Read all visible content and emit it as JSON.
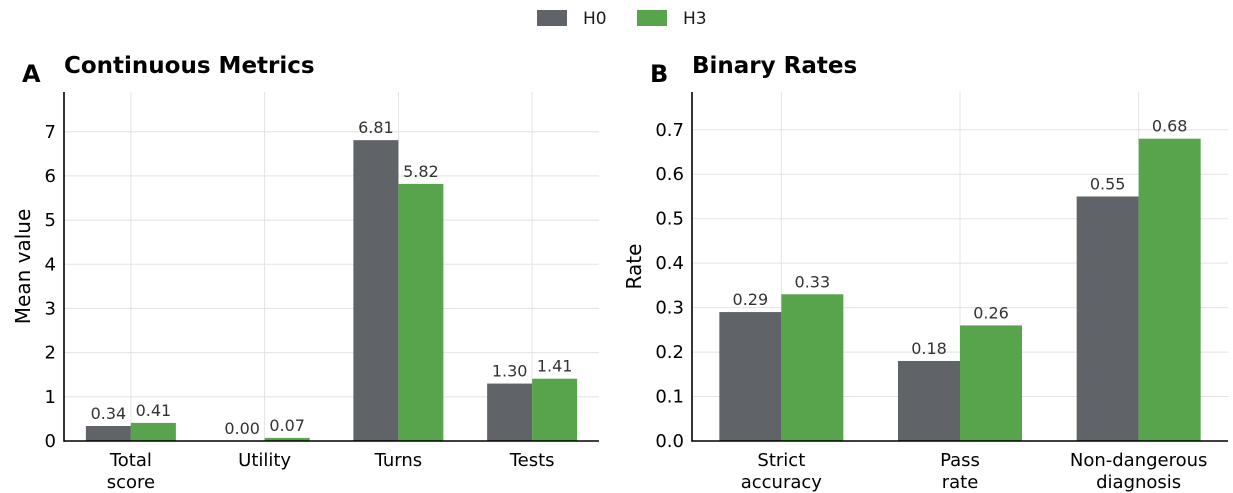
{
  "colors": {
    "H0": "#606368",
    "H3": "#57a44d"
  },
  "legend": [
    {
      "name": "H0",
      "color": "#606368"
    },
    {
      "name": "H3",
      "color": "#57a44d"
    }
  ],
  "chart_data": [
    {
      "type": "bar",
      "panel_letter": "A",
      "title": "Continuous Metrics",
      "xlabel": "",
      "ylabel": "Mean value",
      "ylim": [
        0,
        7.9
      ],
      "yticks": [
        0,
        1,
        2,
        3,
        4,
        5,
        6,
        7
      ],
      "ytick_labels": [
        "0",
        "1",
        "2",
        "3",
        "4",
        "5",
        "6",
        "7"
      ],
      "grid": true,
      "categories": [
        [
          "Total",
          "score"
        ],
        [
          "Utility"
        ],
        [
          "Turns"
        ],
        [
          "Tests"
        ]
      ],
      "series": [
        {
          "name": "H0",
          "values": [
            0.34,
            0.0,
            6.81,
            1.3
          ],
          "labels": [
            "0.34",
            "0.00",
            "6.81",
            "1.30"
          ]
        },
        {
          "name": "H3",
          "values": [
            0.41,
            0.07,
            5.82,
            1.41
          ],
          "labels": [
            "0.41",
            "0.07",
            "5.82",
            "1.41"
          ]
        }
      ]
    },
    {
      "type": "bar",
      "panel_letter": "B",
      "title": "Binary Rates",
      "xlabel": "",
      "ylabel": "Rate",
      "ylim": [
        0,
        0.785
      ],
      "yticks": [
        0,
        0.1,
        0.2,
        0.3,
        0.4,
        0.5,
        0.6,
        0.7
      ],
      "ytick_labels": [
        "0.0",
        "0.1",
        "0.2",
        "0.3",
        "0.4",
        "0.5",
        "0.6",
        "0.7"
      ],
      "grid": true,
      "categories": [
        [
          "Strict",
          "accuracy"
        ],
        [
          "Pass",
          "rate"
        ],
        [
          "Non-dangerous",
          "diagnosis"
        ]
      ],
      "series": [
        {
          "name": "H0",
          "values": [
            0.29,
            0.18,
            0.55
          ],
          "labels": [
            "0.29",
            "0.18",
            "0.55"
          ]
        },
        {
          "name": "H3",
          "values": [
            0.33,
            0.26,
            0.68
          ],
          "labels": [
            "0.33",
            "0.26",
            "0.68"
          ]
        }
      ]
    }
  ]
}
